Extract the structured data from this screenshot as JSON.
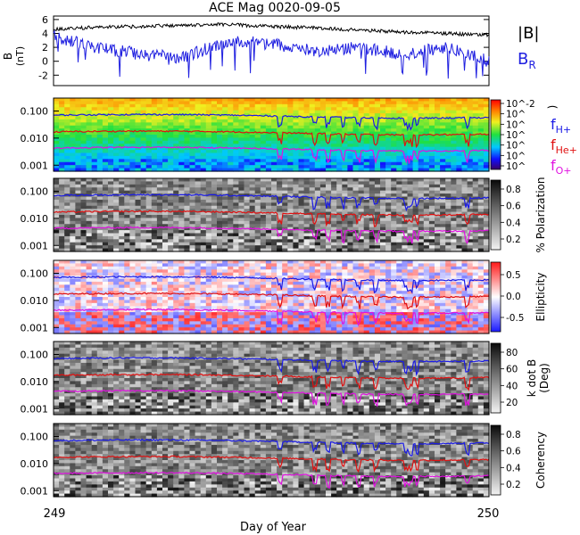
{
  "title": "ACE Mag 0020-09-05",
  "xlabel": "Day of Year",
  "x_ticks": [
    "249",
    "250"
  ],
  "colors": {
    "B_total": "#000000",
    "B_R": "#1f1fe0",
    "f_H": "#1a1ae6",
    "f_He": "#e01010",
    "f_O": "#e010e0"
  },
  "chart_data": [
    {
      "type": "line",
      "panel": "magnetic-field",
      "ylabel": "B",
      "yunit": "(nT)",
      "y_ticks": [
        "6",
        "4",
        "2",
        "0",
        "-2"
      ],
      "ylim": [
        -3.5,
        6.5
      ],
      "xlim": [
        249,
        250
      ],
      "series": [
        {
          "name": "|B|",
          "x": [
            249.0,
            249.1,
            249.2,
            249.3,
            249.4,
            249.5,
            249.6,
            249.7,
            249.8,
            249.9,
            250.0
          ],
          "values": [
            4.6,
            4.9,
            5.0,
            5.2,
            5.3,
            5.0,
            4.8,
            4.5,
            4.2,
            4.0,
            3.8
          ]
        },
        {
          "name": "B_R",
          "x": [
            249.0,
            249.1,
            249.2,
            249.3,
            249.4,
            249.5,
            249.6,
            249.7,
            249.8,
            249.9,
            250.0
          ],
          "values": [
            3.5,
            2.0,
            1.0,
            0.5,
            3.0,
            2.5,
            1.5,
            2.0,
            1.0,
            2.0,
            0.0
          ]
        }
      ],
      "legend": [
        "|B|",
        "B_R"
      ],
      "legend_position": "right"
    },
    {
      "type": "heatmap",
      "panel": "power-spectrum",
      "ylabel": "Frequency (Hz)",
      "y_scale": "log",
      "y_ticks": [
        "0.100",
        "0.010",
        "0.001"
      ],
      "colorbar_label": ")",
      "colorbar_ticks": [
        "10^-2",
        "10^",
        "10^",
        "10^",
        "10^",
        "10^",
        "10^"
      ],
      "colormap": "rainbow",
      "overlays": [
        "f_H+",
        "f_He+",
        "f_O+"
      ]
    },
    {
      "type": "heatmap",
      "panel": "polarization",
      "ylabel": "Frequency (Hz)",
      "y_scale": "log",
      "y_ticks": [
        "0.100",
        "0.010",
        "0.001"
      ],
      "colorbar_label": "% Polarization",
      "colorbar_ticks": [
        "0.8",
        "0.6",
        "0.4",
        "0.2"
      ],
      "colormap": "gray",
      "overlays": [
        "f_H+",
        "f_He+",
        "f_O+"
      ]
    },
    {
      "type": "heatmap",
      "panel": "ellipticity",
      "ylabel": "Frequency (Hz)",
      "y_scale": "log",
      "y_ticks": [
        "0.100",
        "0.010",
        "0.001"
      ],
      "colorbar_label": "Ellipticity",
      "colorbar_ticks": [
        "0.5",
        "0.0",
        "-0.5"
      ],
      "colormap": "blue-white-red",
      "overlays": [
        "f_H+",
        "f_He+",
        "f_O+"
      ]
    },
    {
      "type": "heatmap",
      "panel": "k-dot-b",
      "ylabel": "Frequency (Hz)",
      "y_scale": "log",
      "y_ticks": [
        "0.100",
        "0.010",
        "0.001"
      ],
      "colorbar_label": "k dot B",
      "colorbar_unit": "(Deg)",
      "colorbar_ticks": [
        "80",
        "60",
        "40",
        "20"
      ],
      "colormap": "gray",
      "overlays": [
        "f_H+",
        "f_He+",
        "f_O+"
      ]
    },
    {
      "type": "heatmap",
      "panel": "coherency",
      "ylabel": "Frequency (Hz)",
      "y_scale": "log",
      "y_ticks": [
        "0.100",
        "0.010",
        "0.001"
      ],
      "colorbar_label": "Coherency",
      "colorbar_ticks": [
        "0.8",
        "0.6",
        "0.4",
        "0.2"
      ],
      "colormap": "gray",
      "overlays": [
        "f_H+",
        "f_He+",
        "f_O+"
      ]
    }
  ],
  "gyrofrequency_lines": {
    "f_H+": 0.07,
    "f_He+": 0.017,
    "f_O+": 0.0043
  },
  "overlay_legend": {
    "f_H": {
      "main": "f",
      "sub": "H+"
    },
    "f_He": {
      "main": "f",
      "sub": "He+"
    },
    "f_O": {
      "main": "f",
      "sub": "O+"
    }
  },
  "top_legend": {
    "B": {
      "main": "|B|"
    },
    "BR": {
      "main": "B",
      "sub": "R"
    }
  }
}
